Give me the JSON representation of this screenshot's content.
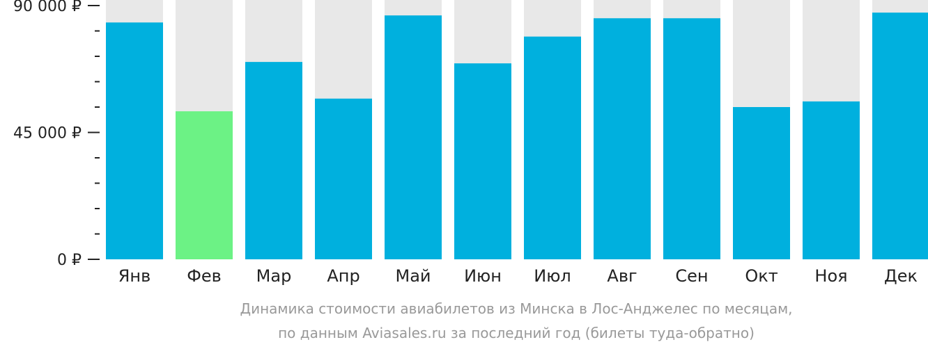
{
  "chart_data": {
    "type": "bar",
    "categories": [
      "Янв",
      "Фев",
      "Мар",
      "Апр",
      "Май",
      "Июн",
      "Июл",
      "Авг",
      "Сен",
      "Окт",
      "Ноя",
      "Дек"
    ],
    "values": [
      84000,
      52500,
      70000,
      57000,
      86500,
      69500,
      79000,
      85500,
      85500,
      54000,
      56000,
      87500
    ],
    "ylim": [
      0,
      90000
    ],
    "y_ticks": [
      {
        "value": 0,
        "label": "0 ₽"
      },
      {
        "value": 45000,
        "label": "45 000 ₽"
      },
      {
        "value": 90000,
        "label": "90 000 ₽"
      }
    ],
    "minor_tick_step": 9000,
    "highlight_index": 1,
    "colors": {
      "bar": "#00b0de",
      "highlight": "#6cf285",
      "background_bar": "#e8e8e8",
      "axis": "#222222"
    },
    "grid": false,
    "legend": "none"
  },
  "caption": {
    "line1": "Динамика стоимости авиабилетов из Минска в Лос-Анджелес по месяцам,",
    "line2": "по данным Aviasales.ru за последний год (билеты туда-обратно)"
  }
}
